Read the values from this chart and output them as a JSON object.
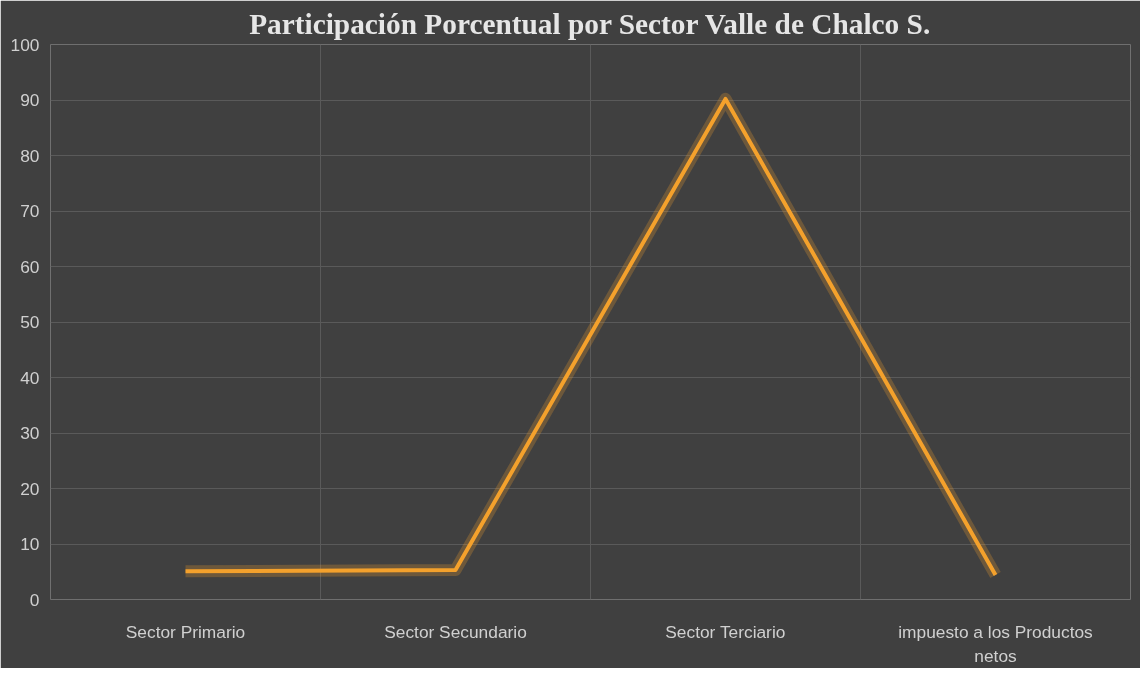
{
  "chart_data": {
    "type": "line",
    "title": "Participación Porcentual por Sector Valle de Chalco S.",
    "categories": [
      "Sector Primario",
      "Sector Secundario",
      "Sector Terciario",
      "impuesto a los Productos netos"
    ],
    "series": [
      {
        "color": "#f4a12c",
        "values": [
          5.1,
          5.3,
          90.2,
          4.4
        ]
      }
    ],
    "ylim": [
      0,
      100
    ],
    "yticks": [
      0,
      10,
      20,
      30,
      40,
      50,
      60,
      70,
      80,
      90,
      100
    ],
    "grid": true,
    "marker": "none",
    "line_style": "solid"
  }
}
